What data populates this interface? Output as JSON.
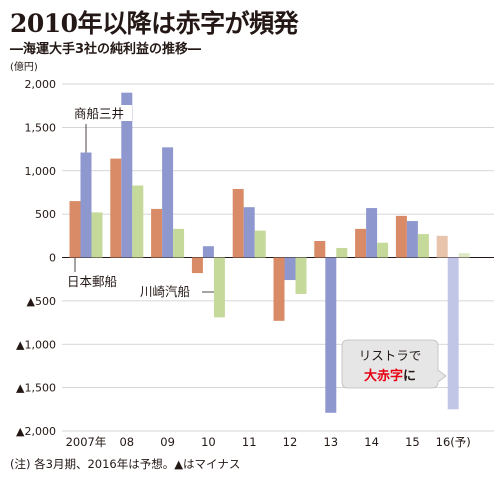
{
  "title": "2010年以降は赤字が頻発",
  "subtitle": "―海運大手3社の純利益の推移―",
  "unit_label": "(億円)",
  "note": "(注) 各3月期、2016年は予想。▲はマイナス",
  "callout": {
    "line1": "リストラで",
    "highlight": "大赤字",
    "tail": "に"
  },
  "colors": {
    "nyk": "#d98b67",
    "mol": "#8f97cf",
    "kline": "#c5d99a",
    "nyk_forecast": "#e8c4ad",
    "mol_forecast": "#c1c6e6",
    "kline_forecast": "#dfe9c6",
    "callout_bg": "#e6e6e6",
    "callout_accent": "#e60012",
    "grid": "#c9c9c9"
  },
  "chart_data": {
    "type": "bar",
    "categories": [
      "2007年",
      "08",
      "09",
      "10",
      "11",
      "12",
      "13",
      "14",
      "15",
      "16(予)"
    ],
    "series": [
      {
        "name": "日本郵船",
        "values": [
          650,
          1140,
          560,
          -180,
          790,
          -730,
          190,
          330,
          480,
          250
        ]
      },
      {
        "name": "商船三井",
        "values": [
          1210,
          1900,
          1270,
          130,
          580,
          -260,
          -1790,
          570,
          420,
          -1750
        ]
      },
      {
        "name": "川崎汽船",
        "values": [
          520,
          830,
          330,
          -690,
          310,
          -420,
          110,
          170,
          270,
          50
        ]
      }
    ],
    "forecast_category_index": 9,
    "ylim": [
      -2000,
      2000
    ],
    "yticks": [
      {
        "value": 2000,
        "label": "2,000"
      },
      {
        "value": 1500,
        "label": "1,500"
      },
      {
        "value": 1000,
        "label": "1,000"
      },
      {
        "value": 500,
        "label": "500"
      },
      {
        "value": 0,
        "label": "0"
      },
      {
        "value": -500,
        "label": "▲500"
      },
      {
        "value": -1000,
        "label": "▲1,000"
      },
      {
        "value": -1500,
        "label": "▲1,500"
      },
      {
        "value": -2000,
        "label": "▲2,000"
      }
    ],
    "grid": true
  }
}
